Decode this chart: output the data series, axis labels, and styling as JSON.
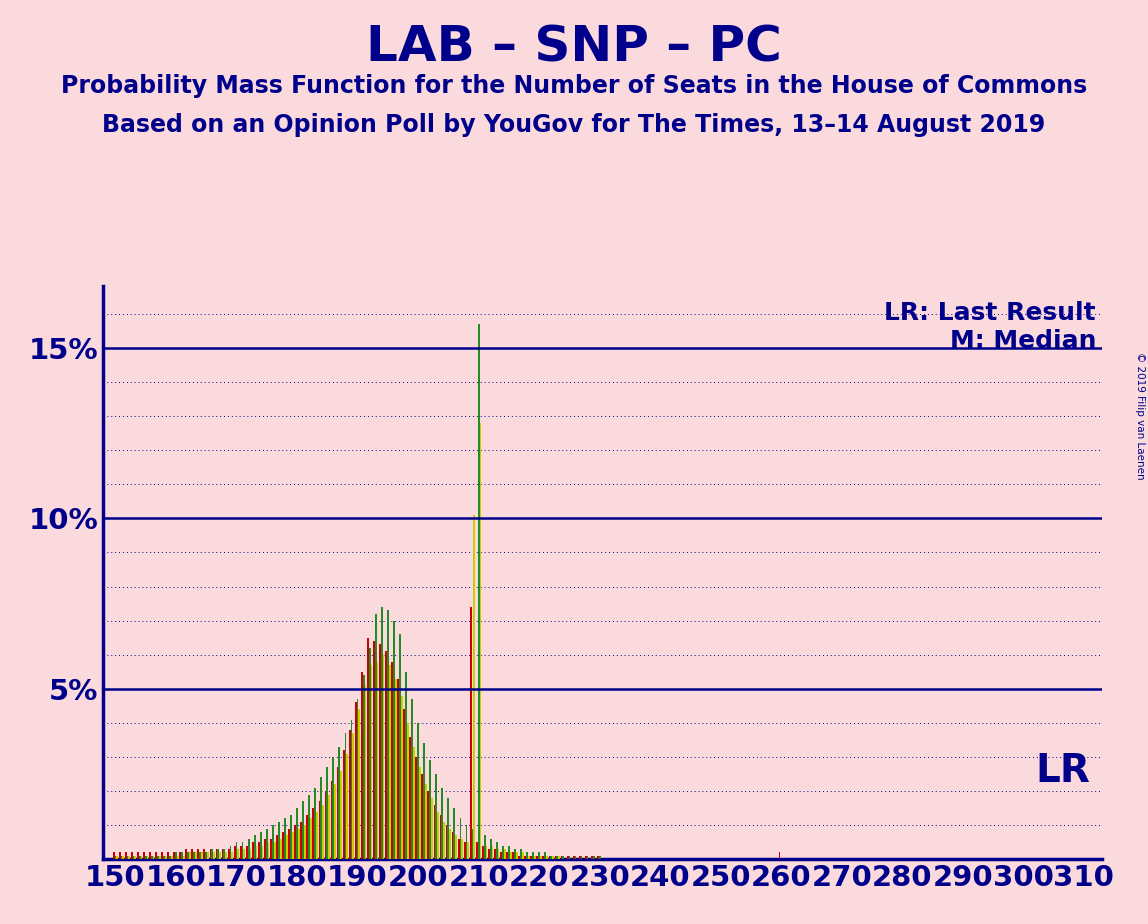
{
  "title": "LAB – SNP – PC",
  "subtitle1": "Probability Mass Function for the Number of Seats in the House of Commons",
  "subtitle2": "Based on an Opinion Poll by YouGov for The Times, 13–14 August 2019",
  "copyright": "© 2019 Filip van Laenen",
  "legend_lr": "LR: Last Result",
  "legend_m": "M: Median",
  "lr_label": "LR",
  "background_color": "#FADADD",
  "title_color": "#00008B",
  "bar_color_red": "#CC0000",
  "bar_color_green": "#228B22",
  "bar_color_yellow": "#CCCC00",
  "axis_color": "#00008B",
  "grid_color": "#00008B",
  "xmin": 148,
  "xmax": 313,
  "ymin": 0,
  "ymax": 0.168,
  "yticks": [
    0.0,
    0.05,
    0.1,
    0.15
  ],
  "ytick_labels": [
    "",
    "5%",
    "10%",
    "15%"
  ],
  "xticks": [
    150,
    160,
    170,
    180,
    190,
    200,
    210,
    220,
    230,
    240,
    250,
    260,
    270,
    280,
    290,
    300,
    310
  ],
  "lab_seats": [
    150,
    151,
    152,
    153,
    154,
    155,
    156,
    157,
    158,
    159,
    160,
    161,
    162,
    163,
    164,
    165,
    166,
    167,
    168,
    169,
    170,
    171,
    172,
    173,
    174,
    175,
    176,
    177,
    178,
    179,
    180,
    181,
    182,
    183,
    184,
    185,
    186,
    187,
    188,
    189,
    190,
    191,
    192,
    193,
    194,
    195,
    196,
    197,
    198,
    199,
    200,
    201,
    202,
    203,
    204,
    205,
    206,
    207,
    208,
    209,
    210,
    211,
    212,
    213,
    214,
    215,
    216,
    217,
    218,
    219,
    220,
    221,
    222,
    223,
    224,
    225,
    226,
    227,
    228,
    229,
    230,
    231,
    232,
    233,
    234,
    235,
    236,
    237,
    238,
    239,
    240,
    241,
    242,
    243,
    244,
    245,
    246,
    247,
    248,
    249,
    250,
    260
  ],
  "lab_pmf": [
    0.002,
    0.002,
    0.002,
    0.002,
    0.002,
    0.002,
    0.002,
    0.002,
    0.002,
    0.002,
    0.002,
    0.002,
    0.003,
    0.003,
    0.003,
    0.003,
    0.003,
    0.003,
    0.003,
    0.003,
    0.004,
    0.004,
    0.004,
    0.005,
    0.005,
    0.006,
    0.006,
    0.007,
    0.008,
    0.009,
    0.01,
    0.011,
    0.013,
    0.015,
    0.017,
    0.02,
    0.023,
    0.027,
    0.032,
    0.038,
    0.046,
    0.055,
    0.065,
    0.064,
    0.063,
    0.061,
    0.058,
    0.053,
    0.044,
    0.036,
    0.03,
    0.025,
    0.02,
    0.016,
    0.013,
    0.01,
    0.008,
    0.006,
    0.005,
    0.074,
    0.005,
    0.004,
    0.003,
    0.003,
    0.002,
    0.002,
    0.002,
    0.001,
    0.001,
    0.001,
    0.001,
    0.001,
    0.001,
    0.001,
    0.001,
    0.001,
    0.001,
    0.001,
    0.001,
    0.001,
    0.001,
    0.0,
    0.0,
    0.0,
    0.0,
    0.0,
    0.0,
    0.0,
    0.0,
    0.0,
    0.0,
    0.0,
    0.0,
    0.0,
    0.0,
    0.0,
    0.0,
    0.0,
    0.0,
    0.0,
    0.0,
    0.002
  ],
  "snp_seats": [
    150,
    151,
    152,
    153,
    154,
    155,
    156,
    157,
    158,
    159,
    160,
    161,
    162,
    163,
    164,
    165,
    166,
    167,
    168,
    169,
    170,
    171,
    172,
    173,
    174,
    175,
    176,
    177,
    178,
    179,
    180,
    181,
    182,
    183,
    184,
    185,
    186,
    187,
    188,
    189,
    190,
    191,
    192,
    193,
    194,
    195,
    196,
    197,
    198,
    199,
    200,
    201,
    202,
    203,
    204,
    205,
    206,
    207,
    208,
    209,
    210,
    211,
    212,
    213,
    214,
    215,
    216,
    217,
    218,
    219,
    220,
    221,
    222,
    223,
    224,
    225,
    226,
    227,
    228,
    229,
    230,
    231
  ],
  "snp_pmf": [
    0.001,
    0.001,
    0.001,
    0.001,
    0.001,
    0.001,
    0.001,
    0.001,
    0.001,
    0.001,
    0.002,
    0.002,
    0.002,
    0.002,
    0.002,
    0.002,
    0.003,
    0.003,
    0.003,
    0.004,
    0.005,
    0.005,
    0.006,
    0.007,
    0.008,
    0.009,
    0.01,
    0.011,
    0.012,
    0.013,
    0.015,
    0.017,
    0.019,
    0.021,
    0.024,
    0.027,
    0.03,
    0.033,
    0.037,
    0.041,
    0.047,
    0.054,
    0.062,
    0.072,
    0.074,
    0.073,
    0.07,
    0.066,
    0.055,
    0.047,
    0.04,
    0.034,
    0.029,
    0.025,
    0.021,
    0.018,
    0.015,
    0.012,
    0.01,
    0.009,
    0.157,
    0.007,
    0.006,
    0.005,
    0.004,
    0.004,
    0.003,
    0.003,
    0.002,
    0.002,
    0.002,
    0.002,
    0.001,
    0.001,
    0.001,
    0.001,
    0.001,
    0.001,
    0.001,
    0.001,
    0.001,
    0.0
  ],
  "pc_seats": [
    150,
    151,
    152,
    153,
    154,
    155,
    156,
    157,
    158,
    159,
    160,
    161,
    162,
    163,
    164,
    165,
    166,
    167,
    168,
    169,
    170,
    171,
    172,
    173,
    174,
    175,
    176,
    177,
    178,
    179,
    180,
    181,
    182,
    183,
    184,
    185,
    186,
    187,
    188,
    189,
    190,
    191,
    192,
    193,
    194,
    195,
    196,
    197,
    198,
    199,
    200,
    201,
    202,
    203,
    204,
    205,
    206,
    207,
    208,
    209,
    210,
    211,
    212,
    213,
    214,
    215,
    216,
    217,
    218,
    219,
    220,
    221,
    222,
    223,
    224,
    225
  ],
  "pc_pmf": [
    0.001,
    0.001,
    0.001,
    0.001,
    0.001,
    0.001,
    0.001,
    0.001,
    0.001,
    0.001,
    0.001,
    0.001,
    0.002,
    0.002,
    0.002,
    0.002,
    0.002,
    0.002,
    0.002,
    0.002,
    0.003,
    0.003,
    0.003,
    0.004,
    0.004,
    0.005,
    0.005,
    0.006,
    0.007,
    0.008,
    0.009,
    0.01,
    0.012,
    0.014,
    0.016,
    0.019,
    0.022,
    0.026,
    0.031,
    0.037,
    0.044,
    0.051,
    0.057,
    0.058,
    0.06,
    0.057,
    0.053,
    0.048,
    0.04,
    0.033,
    0.027,
    0.022,
    0.018,
    0.014,
    0.011,
    0.009,
    0.007,
    0.006,
    0.005,
    0.101,
    0.128,
    0.004,
    0.004,
    0.003,
    0.003,
    0.002,
    0.002,
    0.002,
    0.001,
    0.001,
    0.001,
    0.001,
    0.001,
    0.001,
    0.0,
    0.0
  ]
}
